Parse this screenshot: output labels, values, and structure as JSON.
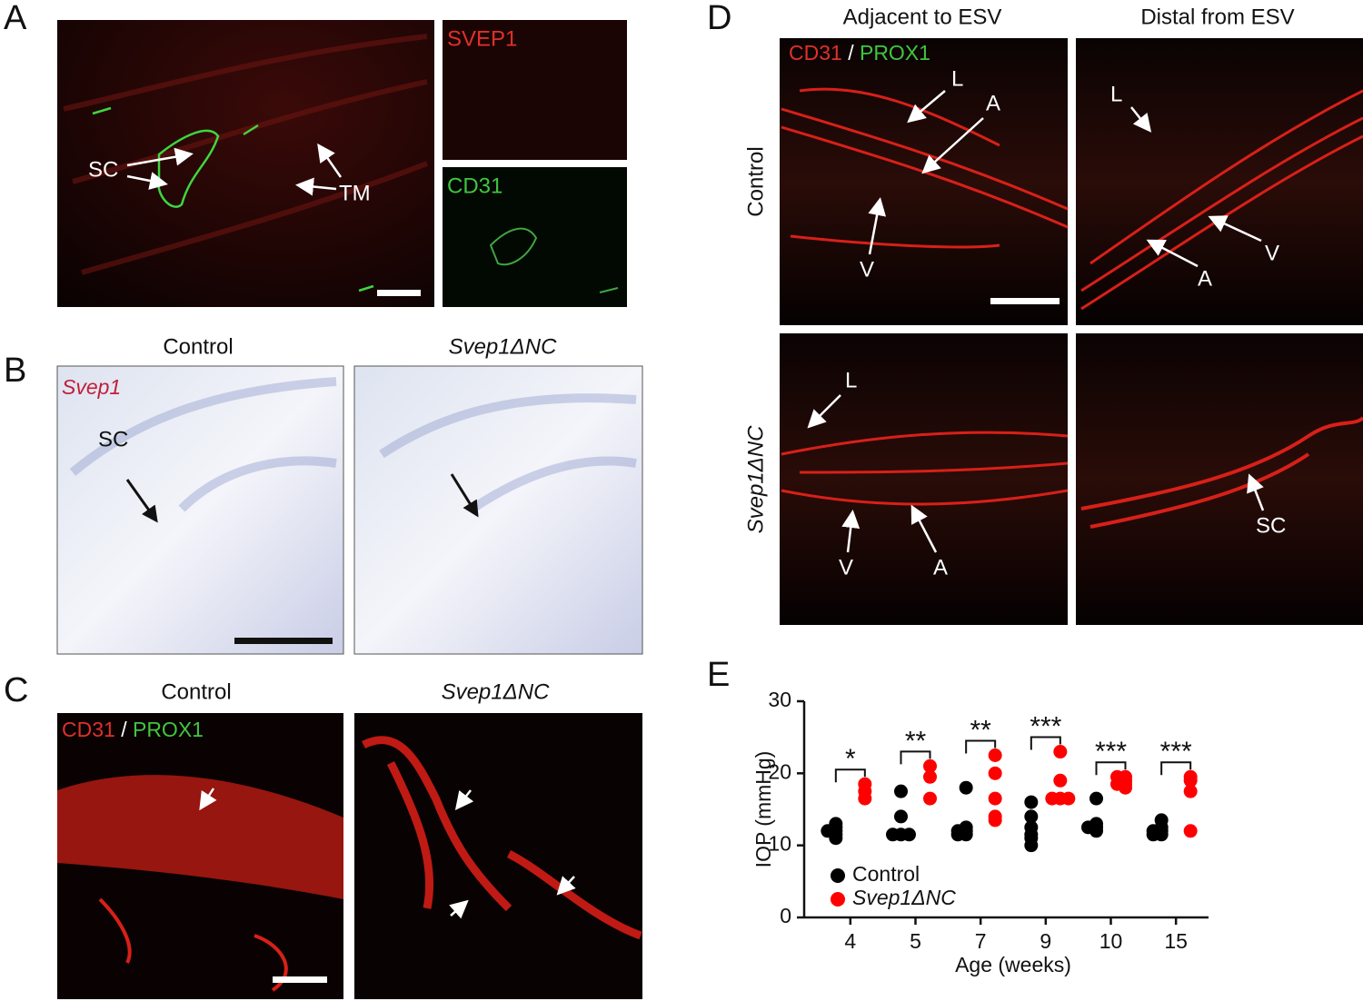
{
  "panels": {
    "A": {
      "letter": "A",
      "labels": [
        "SVEP1",
        "CD31"
      ],
      "annotations": [
        "SC",
        "TM"
      ]
    },
    "B": {
      "letter": "B",
      "titles": [
        "Control",
        "Svep1ΔNC"
      ],
      "stain": "Svep1",
      "annotations": [
        "SC"
      ]
    },
    "C": {
      "letter": "C",
      "titles": [
        "Control",
        "Svep1ΔNC"
      ],
      "stain": [
        "CD31",
        "/",
        "PROX1"
      ]
    },
    "D": {
      "letter": "D",
      "columns": [
        "Adjacent to ESV",
        "Distal from ESV"
      ],
      "rows": [
        "Control",
        "Svep1ΔNC"
      ],
      "stain": [
        "CD31",
        "/",
        "PROX1"
      ],
      "annotations": [
        "L",
        "A",
        "V",
        "L",
        "A",
        "V",
        "L",
        "V",
        "A",
        "SC"
      ]
    },
    "E": {
      "letter": "E"
    }
  },
  "chart_data": {
    "type": "dot",
    "x_label": "Age (weeks)",
    "y_label": "IOP (mmHg)",
    "categories": [
      "4",
      "5",
      "7",
      "9",
      "10",
      "15"
    ],
    "ylim": [
      0,
      30
    ],
    "yticks": [
      0,
      10,
      20,
      30
    ],
    "annotations": [
      "*",
      "**",
      "**",
      "***",
      "***",
      "***"
    ],
    "legend": "bottom-left",
    "series": [
      {
        "name": "Control",
        "color": "#000000",
        "values": [
          [
            12,
            13,
            11.5,
            11,
            12,
            12.5
          ],
          [
            17.5,
            14,
            11.5,
            11.5,
            11.5
          ],
          [
            18,
            12.5,
            12,
            11.5,
            12,
            11.5
          ],
          [
            16,
            14,
            12.5,
            11.5,
            10,
            11
          ],
          [
            16.5,
            13,
            12.5,
            12.5,
            12
          ],
          [
            13.5,
            12.5,
            11.5,
            11.5,
            12,
            12
          ]
        ]
      },
      {
        "name": "Svep1ΔNC",
        "color": "#ff0000",
        "values": [
          [
            18.5,
            16.5,
            17.5
          ],
          [
            21,
            19.5,
            16.5
          ],
          [
            22.5,
            20,
            16.5,
            14,
            13.5
          ],
          [
            23,
            19,
            16.5,
            16.5,
            16.5
          ],
          [
            19.5,
            19.5,
            18.5,
            18,
            18.5,
            19
          ],
          [
            19.5,
            19,
            17.5,
            12
          ]
        ]
      }
    ]
  }
}
